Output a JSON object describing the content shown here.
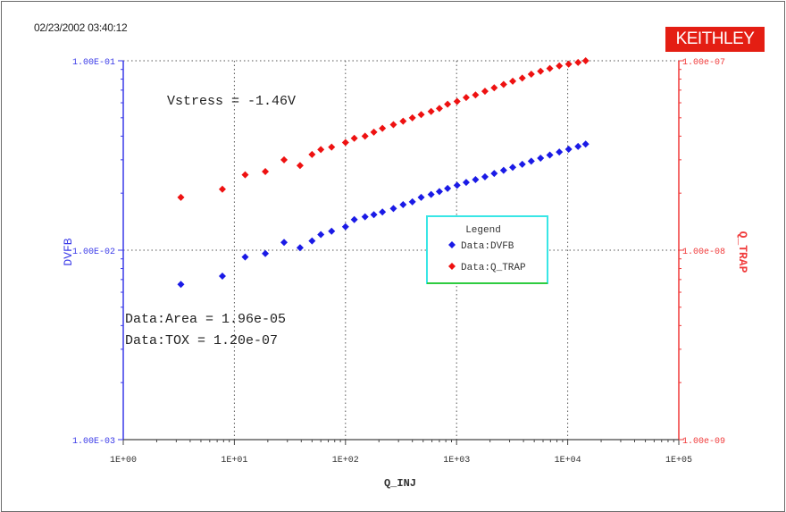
{
  "header": {
    "timestamp": "02/23/2002 03:40:12",
    "brand": "KEITHLEY"
  },
  "colors": {
    "left_axis": "#3a3ae8",
    "right_axis": "#f03a3a",
    "series_dvfb": "#1a1ae6",
    "series_qtrap": "#ee1111",
    "legend_border_top": "#39e6e6",
    "legend_border_bottom": "#2ecc40"
  },
  "chart_data": {
    "type": "scatter",
    "x_scale": "log",
    "y_scale": "log",
    "y2_scale": "log",
    "grid": true,
    "legend_placement": "center-right",
    "xlabel": "Q_INJ",
    "ylabel": "DVFB",
    "y2label": "Q_TRAP",
    "xlim": [
      1,
      100000
    ],
    "ylim": [
      0.001,
      0.1
    ],
    "y2lim": [
      1e-09,
      1e-07
    ],
    "x_ticks": [
      "1E+00",
      "1E+01",
      "1E+02",
      "1E+03",
      "1E+04",
      "1E+05"
    ],
    "y_ticks": [
      "1.00E-03",
      "1.00E-02",
      "1.00E-01"
    ],
    "y2_ticks": [
      "1.00e-09",
      "1.00e-08",
      "1.00e-07"
    ],
    "legend_title": "Legend",
    "annotations": [
      "Vstress = -1.46V",
      "Data:Area = 1.96e-05",
      "Data:TOX = 1.20e-07"
    ],
    "series": [
      {
        "name": "Data:DVFB",
        "axis": "left",
        "x": [
          3.3,
          7.8,
          12.5,
          19,
          28,
          39,
          50,
          60,
          75,
          100,
          120,
          150,
          180,
          215,
          270,
          330,
          400,
          480,
          590,
          700,
          830,
          1010,
          1220,
          1480,
          1800,
          2180,
          2650,
          3200,
          3900,
          4700,
          5700,
          6900,
          8400,
          10200,
          12400,
          14500
        ],
        "y": [
          0.0066,
          0.0073,
          0.0092,
          0.0096,
          0.011,
          0.0103,
          0.0112,
          0.0121,
          0.0126,
          0.0133,
          0.0145,
          0.015,
          0.0154,
          0.0159,
          0.0166,
          0.0174,
          0.018,
          0.019,
          0.0197,
          0.0204,
          0.0212,
          0.022,
          0.0228,
          0.0236,
          0.0244,
          0.0254,
          0.0264,
          0.0274,
          0.0284,
          0.0295,
          0.0306,
          0.0318,
          0.033,
          0.0341,
          0.0353,
          0.0363
        ]
      },
      {
        "name": "Data:Q_TRAP",
        "axis": "right",
        "x": [
          3.3,
          7.8,
          12.5,
          19,
          28,
          39,
          50,
          60,
          75,
          100,
          120,
          150,
          180,
          215,
          270,
          330,
          400,
          480,
          590,
          700,
          830,
          1010,
          1220,
          1480,
          1800,
          2180,
          2650,
          3200,
          3900,
          4700,
          5700,
          6900,
          8400,
          10200,
          12400,
          14500
        ],
        "y": [
          1.9e-08,
          2.1e-08,
          2.5e-08,
          2.6e-08,
          3e-08,
          2.8e-08,
          3.2e-08,
          3.4e-08,
          3.5e-08,
          3.7e-08,
          3.9e-08,
          4e-08,
          4.2e-08,
          4.4e-08,
          4.6e-08,
          4.8e-08,
          5e-08,
          5.2e-08,
          5.4e-08,
          5.6e-08,
          5.9e-08,
          6.1e-08,
          6.4e-08,
          6.6e-08,
          6.9e-08,
          7.2e-08,
          7.5e-08,
          7.8e-08,
          8.1e-08,
          8.5e-08,
          8.8e-08,
          9.1e-08,
          9.4e-08,
          9.6e-08,
          9.8e-08,
          1e-07
        ]
      }
    ]
  }
}
